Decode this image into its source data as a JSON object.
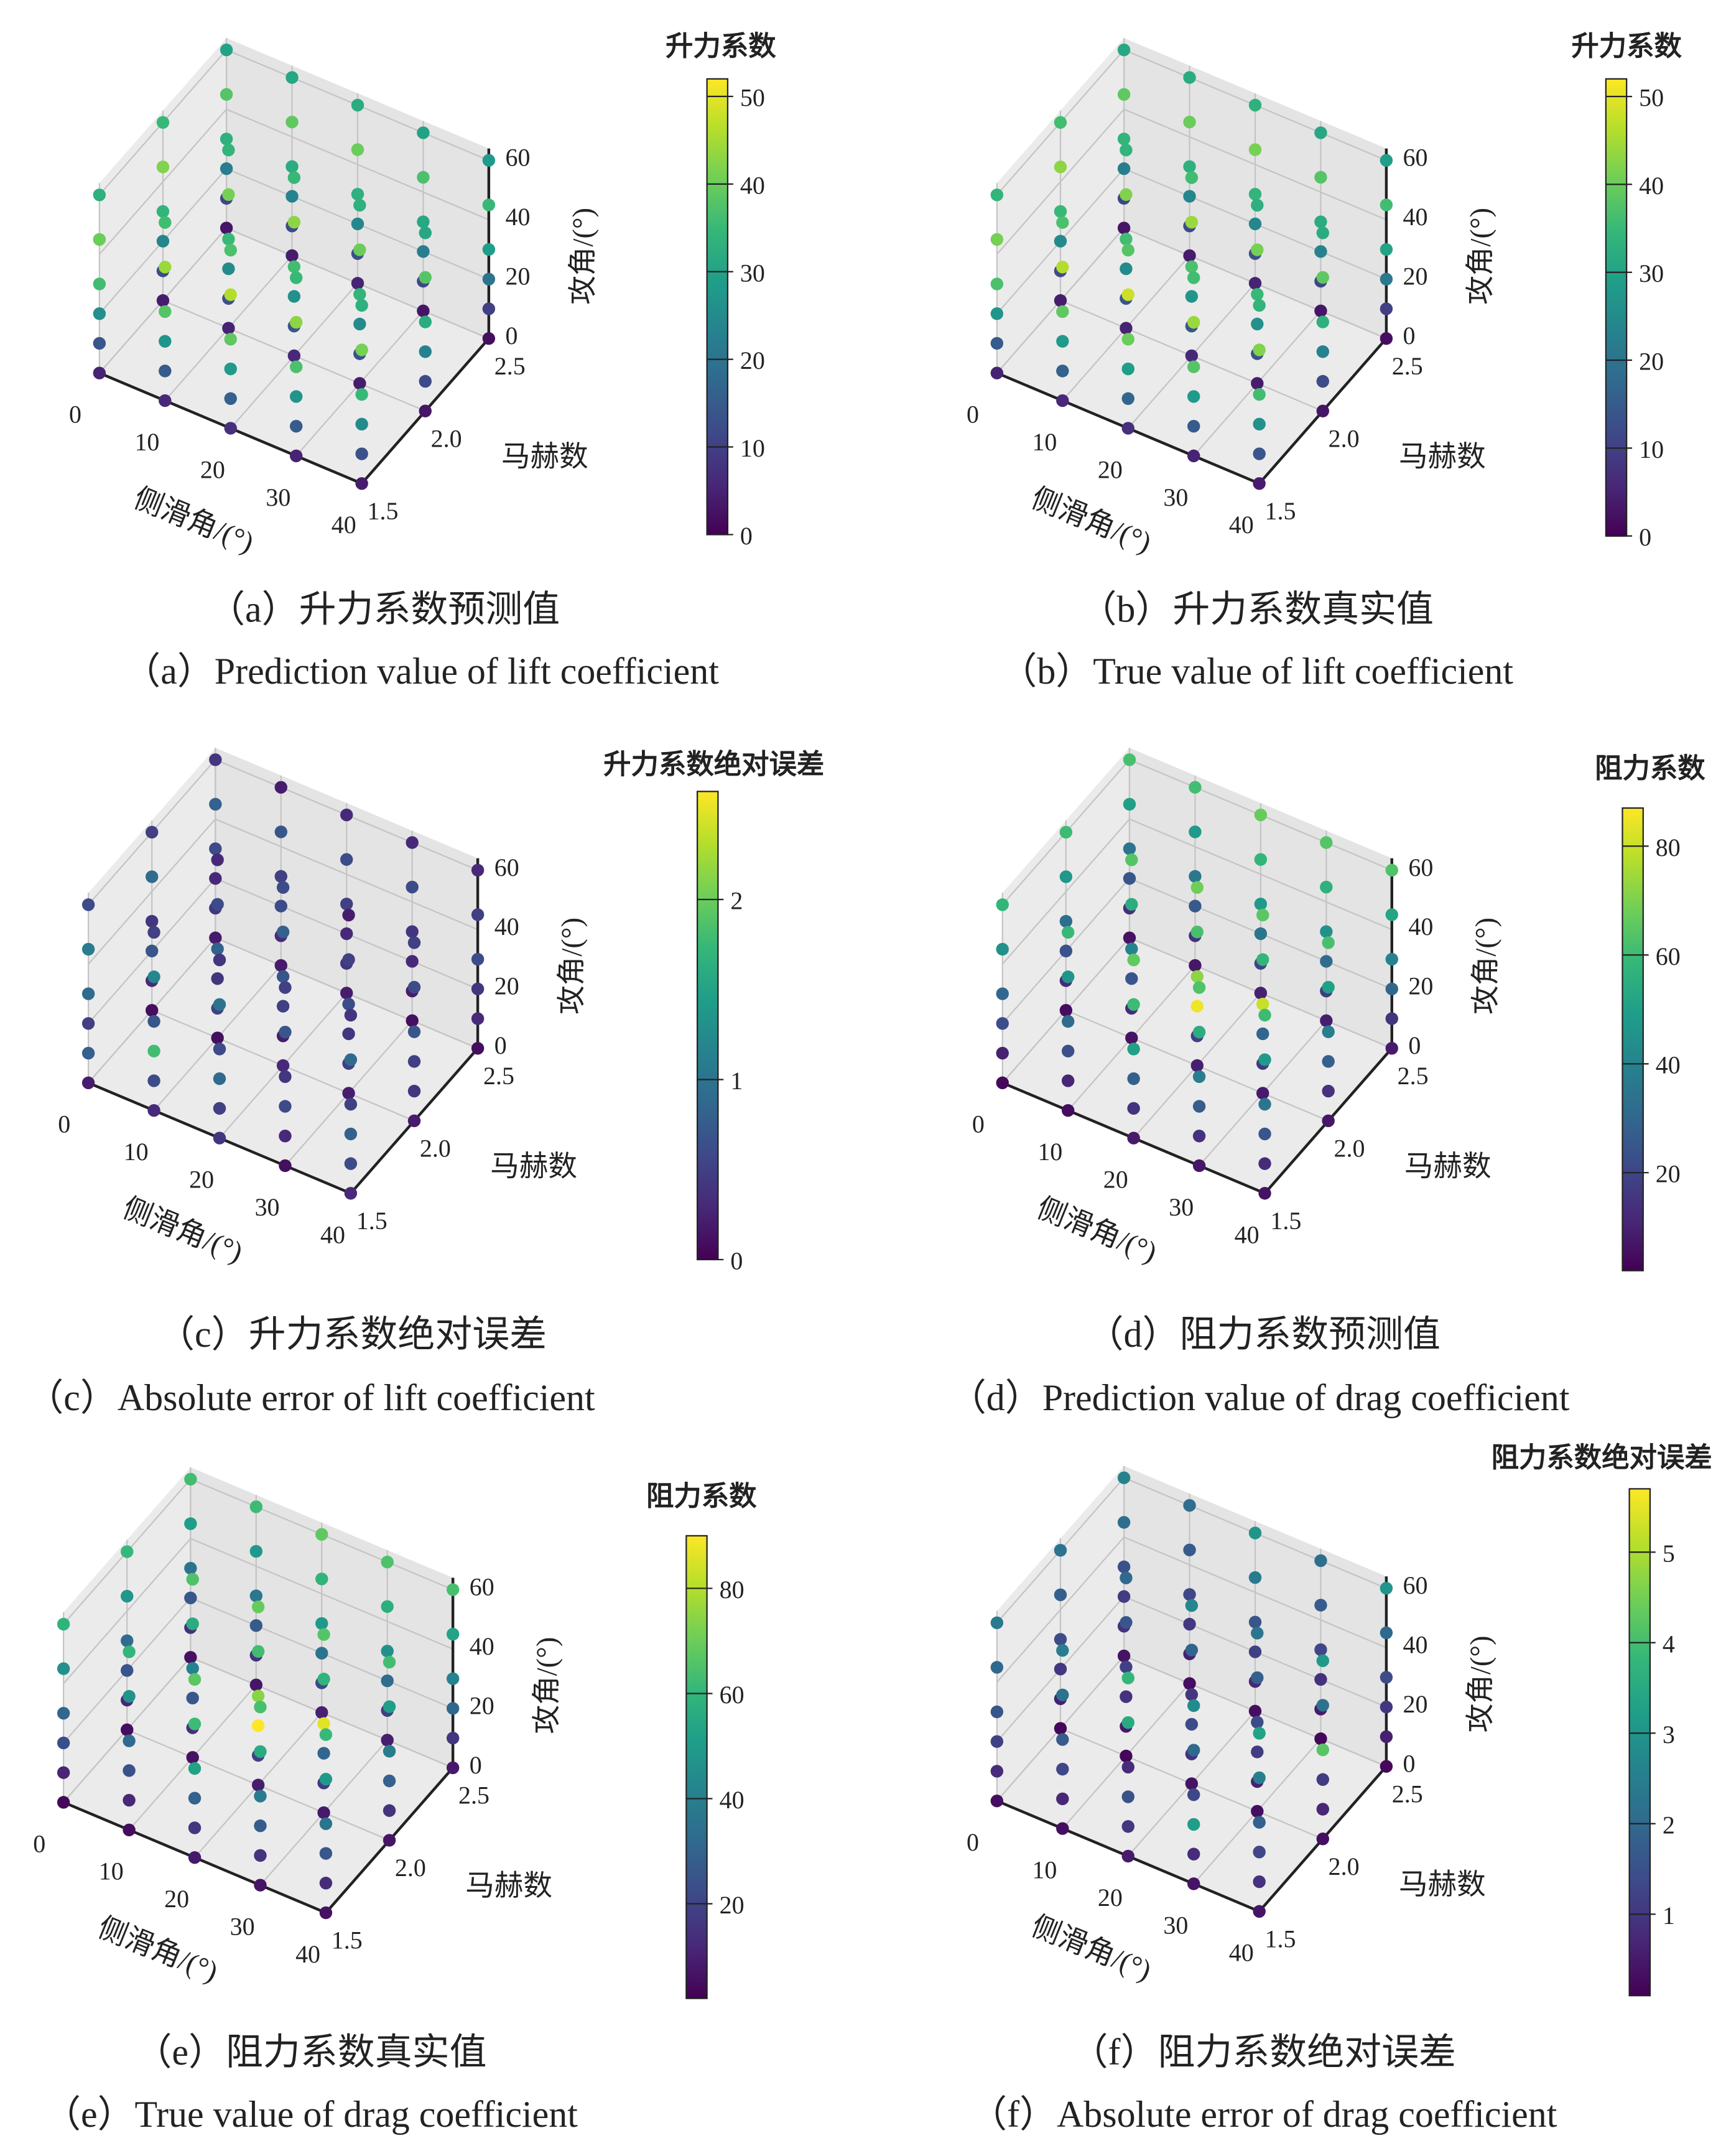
{
  "chart_data": [
    {
      "type": "scatter3d",
      "panel": "a",
      "caption_cn": "（a）升力系数预测值",
      "caption_en": "（a）Prediction value of lift coefficient",
      "xlabel": "侧滑角/(°)",
      "ylabel": "马赫数",
      "zlabel": "攻角/(°)",
      "xticks": [
        "0",
        "10",
        "20",
        "30",
        "40"
      ],
      "yticks": [
        "1.5",
        "2.0",
        "2.5"
      ],
      "zticks": [
        "0",
        "20",
        "40",
        "60"
      ],
      "sideslip": [
        0,
        10,
        20,
        30,
        40
      ],
      "mach": [
        1.5,
        2.0,
        2.5
      ],
      "aoa": [
        0,
        10,
        20,
        30,
        45,
        60
      ],
      "colorbar_label": "升力系数",
      "cbar_ticks": [
        "0",
        "10",
        "20",
        "30",
        "40",
        "50"
      ],
      "cbar_tick_values": [
        0,
        10,
        20,
        30,
        40,
        50
      ],
      "crange": [
        0,
        52
      ],
      "values": [
        [
          5,
          14,
          26,
          36,
          40,
          33
        ],
        [
          4,
          12,
          24,
          34,
          42,
          35
        ],
        [
          3,
          11,
          22,
          33,
          38,
          30
        ],
        [
          6,
          15,
          27,
          38,
          44,
          36
        ],
        [
          5,
          13,
          25,
          35,
          41,
          34
        ],
        [
          4,
          12,
          23,
          32,
          39,
          31
        ],
        [
          7,
          16,
          28,
          39,
          46,
          37
        ],
        [
          6,
          14,
          26,
          36,
          43,
          35
        ],
        [
          5,
          13,
          24,
          33,
          40,
          32
        ],
        [
          5,
          15,
          27,
          37,
          43,
          35
        ],
        [
          4,
          13,
          25,
          34,
          40,
          33
        ],
        [
          3,
          11,
          22,
          31,
          37,
          30
        ],
        [
          4,
          13,
          25,
          35,
          41,
          33
        ],
        [
          3,
          12,
          23,
          32,
          38,
          31
        ],
        [
          2,
          10,
          20,
          29,
          35,
          28
        ]
      ]
    },
    {
      "type": "scatter3d",
      "panel": "b",
      "caption_cn": "（b）升力系数真实值",
      "caption_en": "（b）True value of lift coefficient",
      "xlabel": "侧滑角/(°)",
      "ylabel": "马赫数",
      "zlabel": "攻角/(°)",
      "xticks": [
        "0",
        "10",
        "20",
        "30",
        "40"
      ],
      "yticks": [
        "1.5",
        "2.0",
        "2.5"
      ],
      "zticks": [
        "0",
        "20",
        "40",
        "60"
      ],
      "sideslip": [
        0,
        10,
        20,
        30,
        40
      ],
      "mach": [
        1.5,
        2.0,
        2.5
      ],
      "aoa": [
        0,
        10,
        20,
        30,
        45,
        60
      ],
      "colorbar_label": "升力系数",
      "cbar_ticks": [
        "0",
        "10",
        "20",
        "30",
        "40",
        "50"
      ],
      "cbar_tick_values": [
        0,
        10,
        20,
        30,
        40,
        50
      ],
      "crange": [
        0,
        52
      ],
      "values": [
        [
          5,
          15,
          27,
          37,
          41,
          34
        ],
        [
          4,
          12,
          25,
          35,
          43,
          36
        ],
        [
          3,
          11,
          22,
          34,
          39,
          31
        ],
        [
          6,
          16,
          28,
          39,
          46,
          37
        ],
        [
          5,
          14,
          25,
          36,
          42,
          34
        ],
        [
          4,
          12,
          24,
          33,
          40,
          32
        ],
        [
          7,
          17,
          29,
          40,
          48,
          38
        ],
        [
          6,
          14,
          27,
          37,
          44,
          36
        ],
        [
          5,
          13,
          24,
          34,
          41,
          33
        ],
        [
          5,
          15,
          28,
          38,
          44,
          36
        ],
        [
          4,
          13,
          26,
          35,
          41,
          33
        ],
        [
          3,
          11,
          23,
          32,
          38,
          31
        ],
        [
          4,
          14,
          26,
          36,
          42,
          34
        ],
        [
          3,
          12,
          23,
          33,
          39,
          32
        ],
        [
          2,
          10,
          21,
          30,
          36,
          29
        ]
      ]
    },
    {
      "type": "scatter3d",
      "panel": "c",
      "caption_cn": "（c）升力系数绝对误差",
      "caption_en": "（c）Absolute error of lift coefficient",
      "xlabel": "侧滑角/(°)",
      "ylabel": "马赫数",
      "zlabel": "攻角/(°)",
      "xticks": [
        "0",
        "10",
        "20",
        "30",
        "40"
      ],
      "yticks": [
        "1.5",
        "2.0",
        "2.5"
      ],
      "zticks": [
        "0",
        "20",
        "40",
        "60"
      ],
      "sideslip": [
        0,
        10,
        20,
        30,
        40
      ],
      "mach": [
        1.5,
        2.0,
        2.5
      ],
      "aoa": [
        0,
        10,
        20,
        30,
        45,
        60
      ],
      "colorbar_label": "升力系数绝对误差",
      "cbar_ticks": [
        "0",
        "1",
        "2"
      ],
      "cbar_tick_values": [
        0,
        1,
        2
      ],
      "crange": [
        0,
        2.6
      ],
      "values": [
        [
          0.2,
          0.8,
          0.5,
          0.9,
          1.1,
          0.6
        ],
        [
          0.1,
          0.3,
          0.7,
          0.4,
          0.9,
          0.5
        ],
        [
          0.2,
          0.4,
          0.3,
          0.6,
          0.8,
          0.4
        ],
        [
          0.3,
          0.6,
          1.8,
          0.7,
          1.2,
          0.5
        ],
        [
          0.1,
          0.5,
          0.4,
          0.8,
          0.6,
          0.3
        ],
        [
          0.2,
          0.3,
          0.6,
          0.5,
          0.7,
          0.2
        ],
        [
          0.4,
          0.5,
          0.9,
          0.6,
          1.0,
          0.4
        ],
        [
          0.3,
          0.2,
          0.5,
          0.7,
          0.8,
          0.6
        ],
        [
          0.2,
          0.4,
          0.3,
          0.5,
          0.6,
          0.3
        ],
        [
          0.1,
          0.3,
          0.6,
          0.4,
          0.7,
          0.5
        ],
        [
          0.2,
          0.5,
          0.4,
          0.6,
          0.5,
          0.2
        ],
        [
          0.1,
          0.2,
          0.3,
          0.4,
          0.6,
          0.3
        ],
        [
          0.3,
          0.6,
          0.8,
          0.5,
          0.9,
          0.4
        ],
        [
          0.2,
          0.4,
          0.5,
          0.7,
          0.6,
          0.5
        ],
        [
          0.1,
          0.3,
          0.4,
          0.6,
          0.5,
          0.3
        ]
      ]
    },
    {
      "type": "scatter3d",
      "panel": "d",
      "caption_cn": "（d）阻力系数预测值",
      "caption_en": "（d）Prediction value of drag coefficient",
      "xlabel": "侧滑角/(°)",
      "ylabel": "马赫数",
      "zlabel": "攻角/(°)",
      "xticks": [
        "0",
        "10",
        "20",
        "30",
        "40"
      ],
      "yticks": [
        "1.5",
        "2.0",
        "2.5"
      ],
      "zticks": [
        "0",
        "20",
        "40",
        "60"
      ],
      "sideslip": [
        0,
        10,
        20,
        30,
        40
      ],
      "mach": [
        1.5,
        2.0,
        2.5
      ],
      "aoa": [
        0,
        10,
        20,
        30,
        45,
        60
      ],
      "colorbar_label": "阻力系数",
      "cbar_ticks": [
        "20",
        "40",
        "60",
        "80"
      ],
      "cbar_tick_values": [
        20,
        40,
        60,
        80
      ],
      "crange": [
        2,
        87
      ],
      "values": [
        [
          4,
          10,
          22,
          30,
          45,
          58
        ],
        [
          5,
          12,
          24,
          32,
          47,
          60
        ],
        [
          6,
          13,
          25,
          35,
          50,
          62
        ],
        [
          5,
          11,
          23,
          31,
          46,
          59
        ],
        [
          6,
          13,
          25,
          40,
          55,
          64
        ],
        [
          7,
          14,
          26,
          36,
          48,
          61
        ],
        [
          8,
          15,
          28,
          50,
          60,
          66
        ],
        [
          9,
          18,
          85,
          72,
          62,
          68
        ],
        [
          10,
          20,
          35,
          48,
          58,
          67
        ],
        [
          7,
          14,
          27,
          38,
          55,
          63
        ],
        [
          8,
          16,
          30,
          80,
          58,
          65
        ],
        [
          9,
          17,
          32,
          45,
          56,
          64
        ],
        [
          6,
          12,
          25,
          35,
          48,
          60
        ],
        [
          7,
          14,
          28,
          38,
          50,
          62
        ],
        [
          8,
          15,
          30,
          40,
          52,
          63
        ]
      ]
    },
    {
      "type": "scatter3d",
      "panel": "e",
      "caption_cn": "（e）阻力系数真实值",
      "caption_en": "（e）True value of drag coefficient",
      "xlabel": "侧滑角/(°)",
      "ylabel": "马赫数",
      "zlabel": "攻角/(°)",
      "xticks": [
        "0",
        "10",
        "20",
        "30",
        "40"
      ],
      "yticks": [
        "1.5",
        "2.0",
        "2.5"
      ],
      "zticks": [
        "0",
        "20",
        "40",
        "60"
      ],
      "sideslip": [
        0,
        10,
        20,
        30,
        40
      ],
      "mach": [
        1.5,
        2.0,
        2.5
      ],
      "aoa": [
        0,
        10,
        20,
        30,
        45,
        60
      ],
      "colorbar_label": "阻力系数",
      "cbar_ticks": [
        "20",
        "40",
        "60",
        "80"
      ],
      "cbar_tick_values": [
        20,
        40,
        60,
        80
      ],
      "crange": [
        2,
        90
      ],
      "values": [
        [
          4,
          11,
          23,
          31,
          46,
          59
        ],
        [
          5,
          12,
          25,
          33,
          48,
          61
        ],
        [
          6,
          14,
          26,
          36,
          51,
          63
        ],
        [
          5,
          12,
          24,
          32,
          47,
          60
        ],
        [
          6,
          14,
          26,
          41,
          56,
          65
        ],
        [
          7,
          15,
          27,
          37,
          49,
          62
        ],
        [
          8,
          16,
          29,
          52,
          62,
          67
        ],
        [
          9,
          19,
          90,
          74,
          63,
          69
        ],
        [
          10,
          21,
          36,
          49,
          59,
          68
        ],
        [
          7,
          15,
          28,
          39,
          56,
          64
        ],
        [
          8,
          17,
          31,
          86,
          59,
          66
        ],
        [
          9,
          18,
          33,
          46,
          57,
          65
        ],
        [
          6,
          13,
          26,
          36,
          49,
          61
        ],
        [
          7,
          15,
          29,
          39,
          51,
          63
        ],
        [
          8,
          16,
          31,
          41,
          53,
          64
        ]
      ]
    },
    {
      "type": "scatter3d",
      "panel": "f",
      "caption_cn": "（f）阻力系数绝对误差",
      "caption_en": "（f）Absolute error of drag coefficient",
      "xlabel": "侧滑角/(°)",
      "ylabel": "马赫数",
      "zlabel": "攻角/(°)",
      "xticks": [
        "0",
        "10",
        "20",
        "30",
        "40"
      ],
      "yticks": [
        "1.5",
        "2.0",
        "2.5"
      ],
      "zticks": [
        "0",
        "20",
        "40",
        "60"
      ],
      "sideslip": [
        0,
        10,
        20,
        30,
        40
      ],
      "mach": [
        1.5,
        2.0,
        2.5
      ],
      "aoa": [
        0,
        10,
        20,
        30,
        45,
        60
      ],
      "colorbar_label": "阻力系数绝对误差",
      "cbar_ticks": [
        "1",
        "2",
        "3",
        "4",
        "5"
      ],
      "cbar_tick_values": [
        1,
        2,
        3,
        4,
        5
      ],
      "crange": [
        0.1,
        5.7
      ],
      "values": [
        [
          0.3,
          0.8,
          1.2,
          1.6,
          2.0,
          2.4
        ],
        [
          0.2,
          0.6,
          1.0,
          1.4,
          1.8,
          2.2
        ],
        [
          0.4,
          0.9,
          1.1,
          1.5,
          2.1,
          2.6
        ],
        [
          0.3,
          0.7,
          1.3,
          1.7,
          2.2,
          2.5
        ],
        [
          0.2,
          0.5,
          0.9,
          1.2,
          1.6,
          2.0
        ],
        [
          0.3,
          0.6,
          1.0,
          1.3,
          1.7,
          2.1
        ],
        [
          0.5,
          1.0,
          1.5,
          0.8,
          3.5,
          3.8
        ],
        [
          0.4,
          0.9,
          1.4,
          1.0,
          1.9,
          2.7
        ],
        [
          0.3,
          0.7,
          1.2,
          1.6,
          2.4,
          3.0
        ],
        [
          0.4,
          0.8,
          3.2,
          1.3,
          2.0,
          2.8
        ],
        [
          0.3,
          0.6,
          1.1,
          1.4,
          1.8,
          2.3
        ],
        [
          0.2,
          0.5,
          0.9,
          1.3,
          1.7,
          2.1
        ],
        [
          0.4,
          0.9,
          1.3,
          1.8,
          2.5,
          3.3
        ],
        [
          0.3,
          0.7,
          1.1,
          4.2,
          2.2,
          3.1
        ],
        [
          0.2,
          0.6,
          1.0,
          1.4,
          2.0,
          3.0
        ]
      ]
    }
  ],
  "colors": {
    "pane": "#ebebeb",
    "grid": "#c4c4c4",
    "axis": "#222222",
    "viridis": [
      "#440154",
      "#482878",
      "#3e4989",
      "#31688e",
      "#26828e",
      "#1f9e89",
      "#35b779",
      "#6ece58",
      "#b5de2b",
      "#fde725"
    ]
  }
}
